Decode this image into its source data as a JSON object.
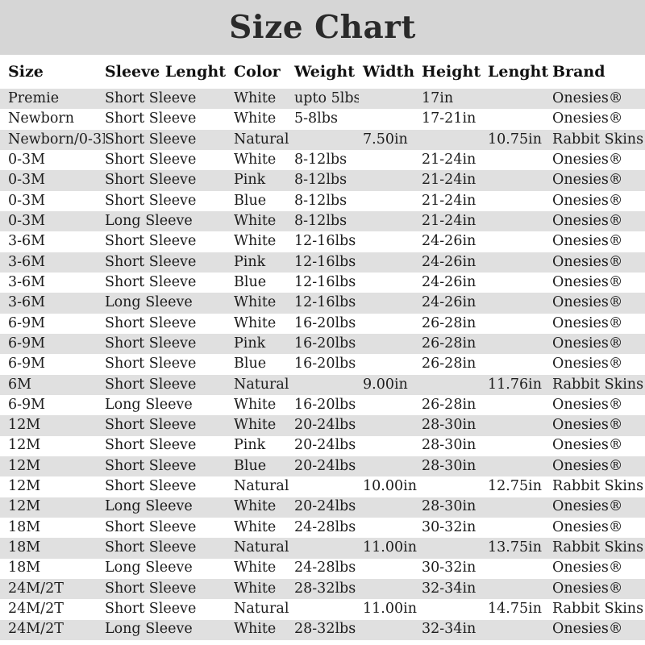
{
  "chart_data": {
    "type": "table",
    "title": "Size Chart",
    "columns": [
      {
        "key": "size",
        "label": "Size"
      },
      {
        "key": "sleeve",
        "label": "Sleeve Lenght"
      },
      {
        "key": "color",
        "label": "Color"
      },
      {
        "key": "weight",
        "label": "Weight"
      },
      {
        "key": "width",
        "label": "Width"
      },
      {
        "key": "height",
        "label": "Height"
      },
      {
        "key": "length",
        "label": "Lenght"
      },
      {
        "key": "brand",
        "label": "Brand"
      }
    ],
    "rows": [
      [
        "Premie",
        "Short Sleeve",
        "White",
        "upto 5lbs",
        "",
        "17in",
        "",
        "Onesies®"
      ],
      [
        "Newborn",
        "Short Sleeve",
        "White",
        "5-8lbs",
        "",
        "17-21in",
        "",
        "Onesies®"
      ],
      [
        "Newborn/0-3M",
        "Short Sleeve",
        "Natural",
        "",
        "7.50in",
        "",
        "10.75in",
        "Rabbit Skins®"
      ],
      [
        "0-3M",
        "Short Sleeve",
        "White",
        "8-12lbs",
        "",
        "21-24in",
        "",
        "Onesies®"
      ],
      [
        "0-3M",
        "Short Sleeve",
        "Pink",
        "8-12lbs",
        "",
        "21-24in",
        "",
        "Onesies®"
      ],
      [
        "0-3M",
        "Short Sleeve",
        "Blue",
        "8-12lbs",
        "",
        "21-24in",
        "",
        "Onesies®"
      ],
      [
        "0-3M",
        "Long Sleeve",
        "White",
        "8-12lbs",
        "",
        "21-24in",
        "",
        "Onesies®"
      ],
      [
        "3-6M",
        "Short Sleeve",
        "White",
        "12-16lbs",
        "",
        "24-26in",
        "",
        "Onesies®"
      ],
      [
        "3-6M",
        "Short Sleeve",
        "Pink",
        "12-16lbs",
        "",
        "24-26in",
        "",
        "Onesies®"
      ],
      [
        "3-6M",
        "Short Sleeve",
        "Blue",
        "12-16lbs",
        "",
        "24-26in",
        "",
        "Onesies®"
      ],
      [
        "3-6M",
        "Long Sleeve",
        "White",
        "12-16lbs",
        "",
        "24-26in",
        "",
        "Onesies®"
      ],
      [
        "6-9M",
        "Short Sleeve",
        "White",
        "16-20lbs",
        "",
        "26-28in",
        "",
        "Onesies®"
      ],
      [
        "6-9M",
        "Short Sleeve",
        "Pink",
        "16-20lbs",
        "",
        "26-28in",
        "",
        "Onesies®"
      ],
      [
        "6-9M",
        "Short Sleeve",
        "Blue",
        "16-20lbs",
        "",
        "26-28in",
        "",
        "Onesies®"
      ],
      [
        "6M",
        "Short Sleeve",
        "Natural",
        "",
        "9.00in",
        "",
        "11.76in",
        "Rabbit Skins®"
      ],
      [
        "6-9M",
        "Long Sleeve",
        "White",
        "16-20lbs",
        "",
        "26-28in",
        "",
        "Onesies®"
      ],
      [
        "12M",
        "Short Sleeve",
        "White",
        "20-24lbs",
        "",
        "28-30in",
        "",
        "Onesies®"
      ],
      [
        "12M",
        "Short Sleeve",
        "Pink",
        "20-24lbs",
        "",
        "28-30in",
        "",
        "Onesies®"
      ],
      [
        "12M",
        "Short Sleeve",
        "Blue",
        "20-24lbs",
        "",
        "28-30in",
        "",
        "Onesies®"
      ],
      [
        "12M",
        "Short Sleeve",
        "Natural",
        "",
        "10.00in",
        "",
        "12.75in",
        "Rabbit Skins®"
      ],
      [
        "12M",
        "Long Sleeve",
        "White",
        "20-24lbs",
        "",
        "28-30in",
        "",
        "Onesies®"
      ],
      [
        "18M",
        "Short Sleeve",
        "White",
        "24-28lbs",
        "",
        "30-32in",
        "",
        "Onesies®"
      ],
      [
        "18M",
        "Short Sleeve",
        "Natural",
        "",
        "11.00in",
        "",
        "13.75in",
        "Rabbit Skins®"
      ],
      [
        "18M",
        "Long Sleeve",
        "White",
        "24-28lbs",
        "",
        "30-32in",
        "",
        "Onesies®"
      ],
      [
        "24M/2T",
        "Short Sleeve",
        "White",
        "28-32lbs",
        "",
        "32-34in",
        "",
        "Onesies®"
      ],
      [
        "24M/2T",
        "Short Sleeve",
        "Natural",
        "",
        "11.00in",
        "",
        "14.75in",
        "Rabbit Skins®"
      ],
      [
        "24M/2T",
        "Long Sleeve",
        "White",
        "28-32lbs",
        "",
        "32-34in",
        "",
        "Onesies®"
      ]
    ],
    "layout": {
      "striping": "odd rows gray, even rows white",
      "grid": "off",
      "legend": "none"
    }
  },
  "colors": {
    "title_bg": "#d6d6d6",
    "stripe_bg": "#e0e0e0",
    "text": "#1c1c1c",
    "page_bg": "#ffffff"
  }
}
